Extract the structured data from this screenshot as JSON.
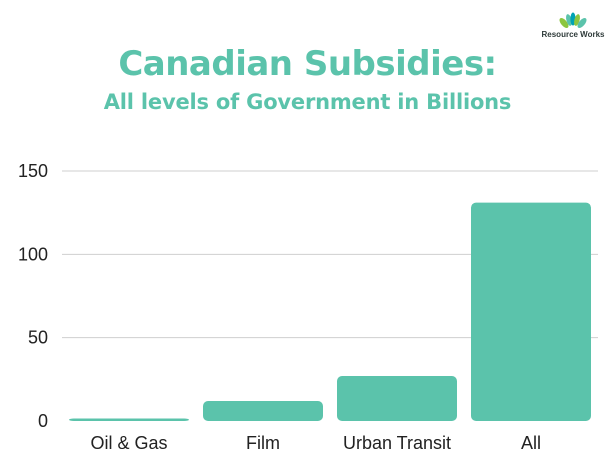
{
  "logo": {
    "text": "Resource Works",
    "icon_colors": [
      "#8cc63f",
      "#00a3b4",
      "#5bc3ab"
    ]
  },
  "chart_data": {
    "type": "bar",
    "title": "Canadian Subsidies:",
    "subtitle": "All levels of Government in Billions",
    "categories": [
      "Oil & Gas",
      "Film",
      "Urban Transit",
      "All"
    ],
    "values": [
      1.5,
      12,
      27,
      131
    ],
    "yticks": [
      "0",
      "50",
      "100",
      "150"
    ],
    "ylim": [
      0,
      150
    ],
    "xlabel": "",
    "ylabel": "",
    "grid": true,
    "bar_color": "#5bc3ab",
    "title_color": "#5bc3ab"
  }
}
